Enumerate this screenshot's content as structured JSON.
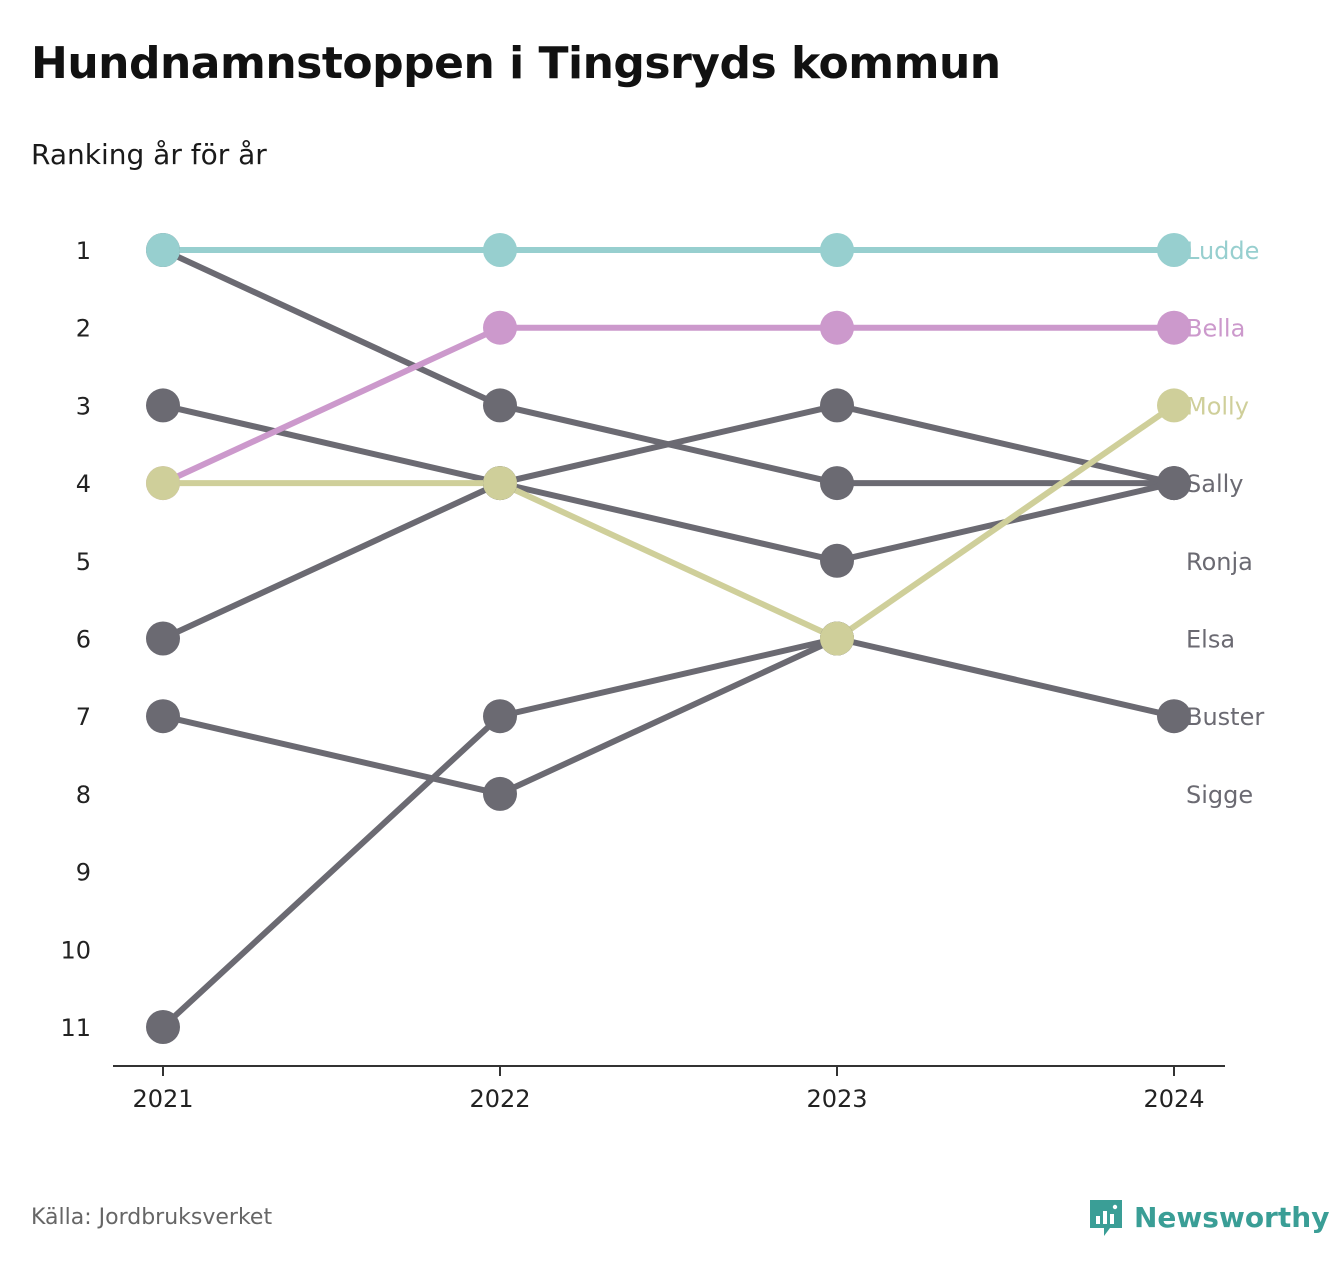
{
  "title": "Hundnamnstoppen i Tingsryds kommun",
  "subtitle": "Ranking år för år",
  "source": "Källa: Jordbruksverket",
  "brand": {
    "name": "Newsworthy",
    "color": "#3a9e96",
    "icon": "newsworthy-logo-icon"
  },
  "chart_data": {
    "type": "line",
    "x": [
      "2021",
      "2022",
      "2023",
      "2024"
    ],
    "y_ticks": [
      1,
      2,
      3,
      4,
      5,
      6,
      7,
      8,
      9,
      10,
      11
    ],
    "ylim": [
      1,
      11
    ],
    "y_inverted": true,
    "grid": false,
    "series": [
      {
        "name": "Ludde",
        "values": [
          1,
          1,
          1,
          1
        ],
        "color": "#97cfcf",
        "highlight": true
      },
      {
        "name": "Bella",
        "values": [
          4,
          2,
          2,
          2
        ],
        "color": "#cc99cc",
        "highlight": true
      },
      {
        "name": "Molly",
        "values": [
          4,
          4,
          6,
          3
        ],
        "color": "#cfcf9a",
        "highlight": true
      },
      {
        "name": "Sally",
        "values": [
          1,
          3,
          4,
          4
        ],
        "color": "#6b6a72",
        "highlight": false
      },
      {
        "name": "Ronja",
        "values": [
          3,
          4,
          5,
          4
        ],
        "color": "#6b6a72",
        "highlight": false
      },
      {
        "name": "Elsa",
        "values": [
          6,
          4,
          3,
          4
        ],
        "color": "#6b6a72",
        "highlight": false
      },
      {
        "name": "Buster",
        "values": [
          11,
          7,
          6,
          7
        ],
        "color": "#6b6a72",
        "highlight": false
      },
      {
        "name": "Sigge",
        "values": [
          7,
          8,
          6,
          null
        ],
        "color": "#6b6a72",
        "highlight": false
      }
    ]
  }
}
